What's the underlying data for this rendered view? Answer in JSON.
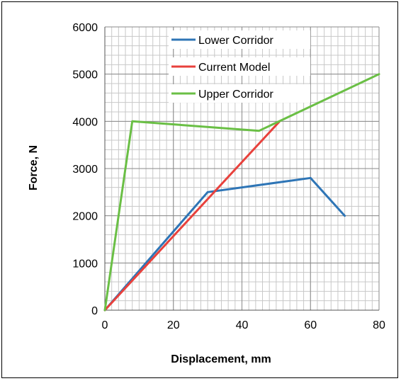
{
  "chart_data": {
    "type": "line",
    "xlabel": "Displacement, mm",
    "ylabel": "Force, N",
    "xlim": [
      0,
      80
    ],
    "ylim": [
      0,
      6000
    ],
    "xticks": [
      0,
      20,
      40,
      60,
      80
    ],
    "yticks": [
      0,
      1000,
      2000,
      3000,
      4000,
      5000,
      6000
    ],
    "grid": true,
    "legend_position": "top-right",
    "series": [
      {
        "name": "Lower Corridor",
        "color": "#2e75b6",
        "x": [
          0,
          30,
          60,
          70
        ],
        "y": [
          0,
          2500,
          2800,
          2000
        ]
      },
      {
        "name": "Current Model",
        "color": "#e8413c",
        "x": [
          0,
          51
        ],
        "y": [
          0,
          4000
        ]
      },
      {
        "name": "Upper Corridor",
        "color": "#6abf45",
        "x": [
          0,
          8,
          45,
          80
        ],
        "y": [
          0,
          4000,
          3800,
          5000
        ]
      }
    ]
  }
}
